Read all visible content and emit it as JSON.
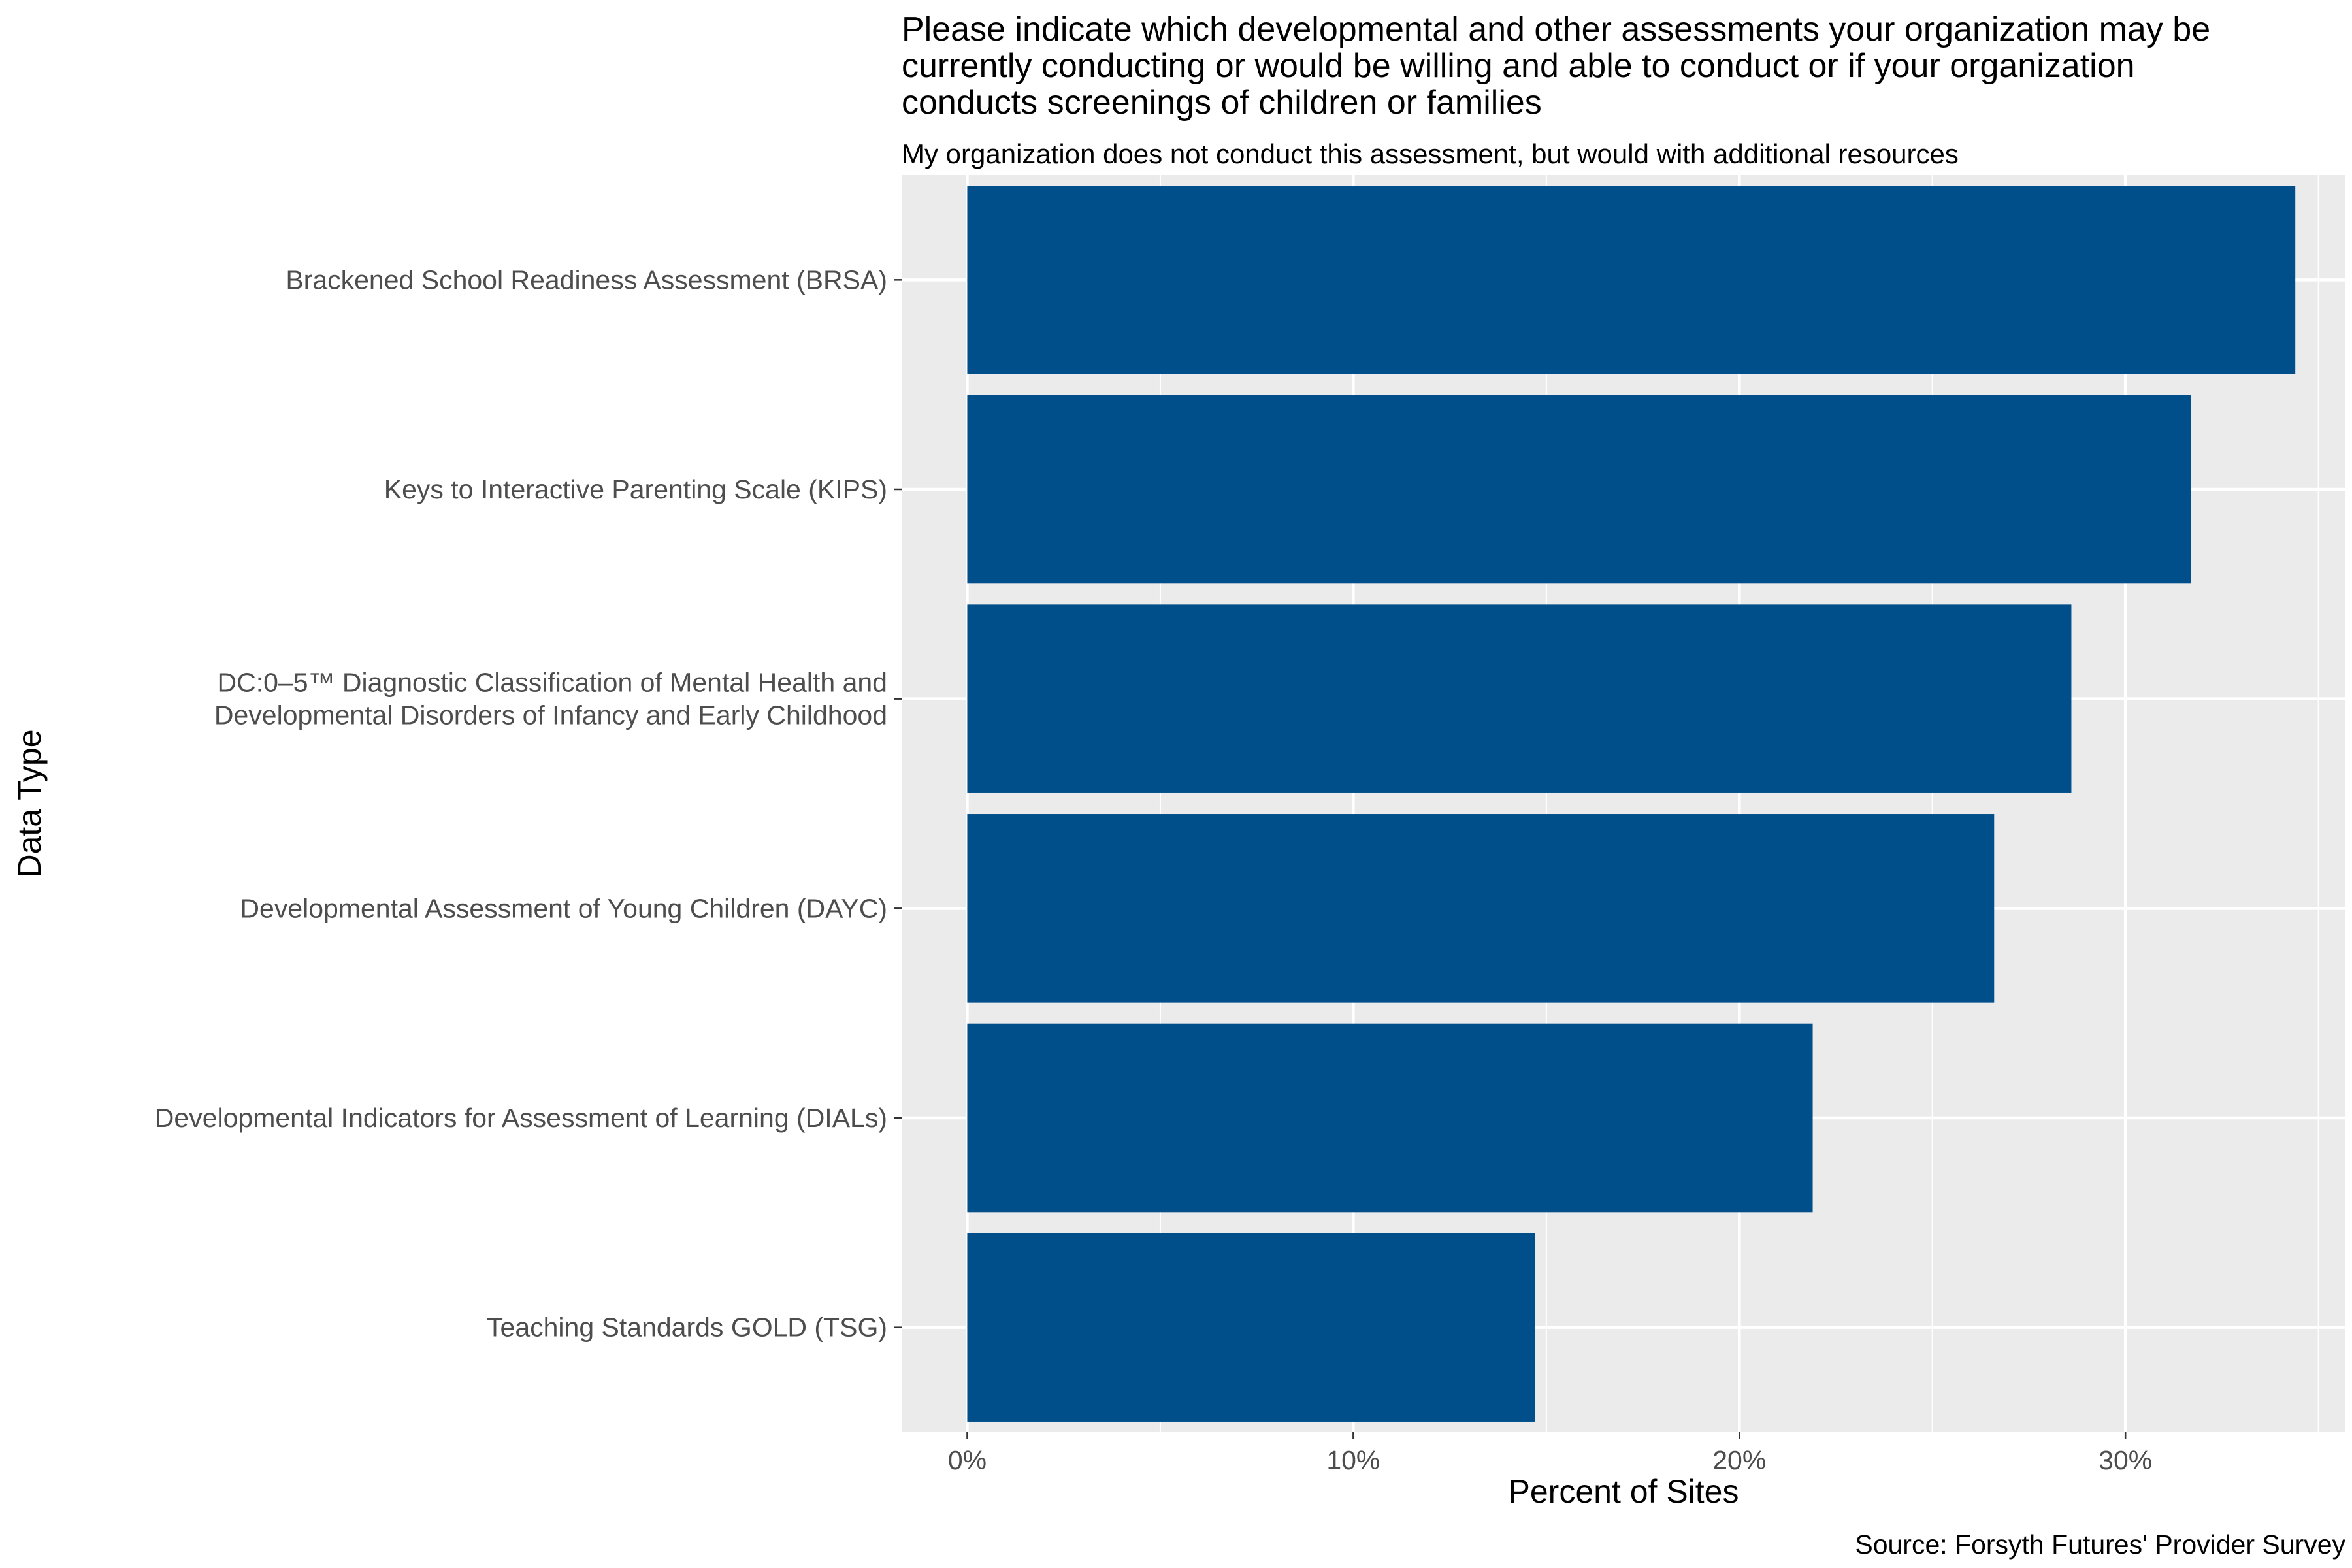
{
  "chart_data": {
    "type": "bar",
    "orientation": "horizontal",
    "title_lines": [
      "Please indicate which developmental and other assessments your organization may be",
      "currently conducting or would be willing and able to conduct or if your organization",
      "conducts screenings of children or families"
    ],
    "subtitle": "My organization does not conduct this assessment, but would with additional resources",
    "xlabel": "Percent of Sites",
    "ylabel": "Data Type",
    "caption": "Source: Forsyth Futures' Provider Survey",
    "categories": [
      [
        "Brackened School Readiness Assessment (BRSA)"
      ],
      [
        "Keys to Interactive Parenting Scale (KIPS)"
      ],
      [
        "DC:0–5™ Diagnostic Classification of Mental Health and",
        "Developmental Disorders of Infancy and Early Childhood"
      ],
      [
        "Developmental Assessment of Young Children (DAYC)"
      ],
      [
        "Developmental Indicators for Assessment of Learning (DIALs)"
      ],
      [
        "Teaching Standards GOLD (TSG)"
      ]
    ],
    "values": [
      34.4,
      31.7,
      28.6,
      26.6,
      21.9,
      14.7
    ],
    "xlim": [
      -1.7,
      35.7
    ],
    "x_ticks": [
      0,
      10,
      20,
      30
    ],
    "x_tick_labels": [
      "0%",
      "10%",
      "20%",
      "30%"
    ],
    "grid": true,
    "colors": {
      "bar": "#004F8A",
      "panel": "#EBEBEB",
      "grid": "#FFFFFF"
    }
  }
}
